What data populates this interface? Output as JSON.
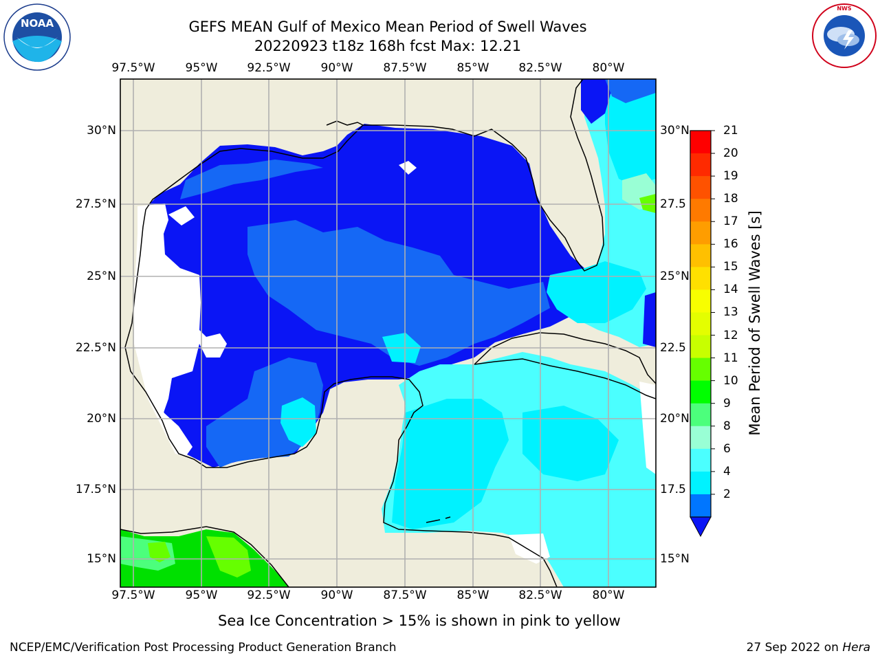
{
  "header": {
    "title_line1": "GEFS MEAN Gulf of Mexico Mean Period of Swell Waves",
    "title_line2": "20220923 t18z 168h fcst   Max: 12.21"
  },
  "logos": {
    "noaa": {
      "text": "NOAA",
      "ring_text": "NATIONAL OCEANIC AND ATMOSPHERIC ADMINISTRATION · U.S. DEPARTMENT OF COMMERCE"
    },
    "nws": {
      "ring_text": "NATIONAL WEATHER SERVICE"
    }
  },
  "map": {
    "lon_labels": [
      "97.5°W",
      "95°W",
      "92.5°W",
      "90°W",
      "87.5°W",
      "85°W",
      "82.5°W",
      "80°W"
    ],
    "lat_labels_left": [
      "30°N",
      "27.5°N",
      "25°N",
      "22.5°N",
      "20°N",
      "17.5°N",
      "15°N"
    ],
    "lat_labels_right": [
      "30°N",
      "27.5",
      "25°N",
      "22.5",
      "20°N",
      "17.5",
      "15°N"
    ],
    "colors": {
      "land": "#efeddc",
      "grid": "#b0b0b0",
      "coast": "#000000",
      "no_data": "#ffffff"
    }
  },
  "colorbar": {
    "label": "Mean Period of Swell Waves [s]",
    "ticks": [
      "21",
      "20",
      "19",
      "18",
      "17",
      "16",
      "15",
      "14",
      "13",
      "12",
      "11",
      "10",
      "9",
      "8",
      "6",
      "4",
      "2"
    ],
    "band_colors": [
      "#fe0000",
      "#fe2a00",
      "#fe5200",
      "#fe7a00",
      "#fe9d00",
      "#ffc000",
      "#ffe000",
      "#f8fe00",
      "#e4fe00",
      "#c8ff00",
      "#66ff00",
      "#00ff00",
      "#4cff7c",
      "#99ffd5",
      "#4bffff",
      "#00f2ff",
      "#0076ff"
    ],
    "extend_color": "#0a15f5"
  },
  "note": "Sea Ice Concentration > 15% is shown in pink to yellow",
  "footer": {
    "left": "NCEP/EMC/Verification Post Processing Product Generation Branch",
    "date": "27 Sep 2022 on ",
    "host": "Hera"
  }
}
